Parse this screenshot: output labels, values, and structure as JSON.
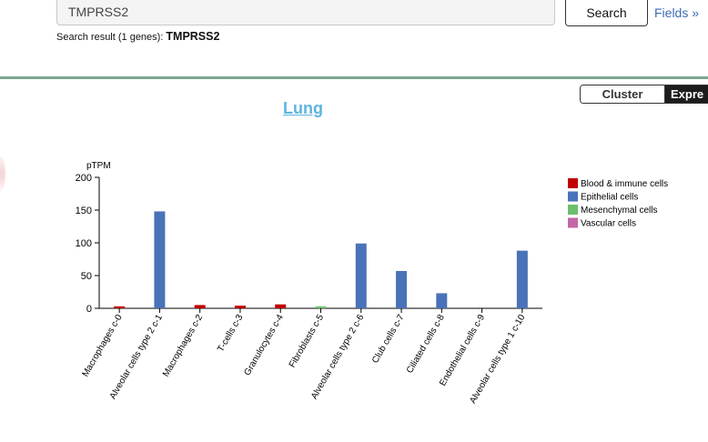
{
  "search": {
    "value": "TMPRSS2",
    "button_label": "Search",
    "fields_label": "Fields »"
  },
  "result": {
    "prefix": "Search result (1 genes):",
    "gene": "TMPRSS2"
  },
  "toggle": {
    "option1": "Cluster",
    "option2": "Expre"
  },
  "tissue": {
    "title": "Lung"
  },
  "colors": {
    "blood": "#c00000",
    "epithelial": "#4a72b8",
    "mesenchymal": "#6cbf6c",
    "vascular": "#c466a6",
    "divider": "#7ea592",
    "title": "#5fb4df"
  },
  "chart_data": {
    "type": "bar",
    "ylabel": "pTPM",
    "ylim": [
      0,
      200
    ],
    "yticks": [
      0,
      50,
      100,
      150,
      200
    ],
    "categories": [
      "Macrophages c-0",
      "Alveolar cells type 2 c-1",
      "Macrophages c-2",
      "T-cells c-3",
      "Granulocytes c-4",
      "Fibroblasts c-5",
      "Alveolar cells type 2 c-6",
      "Club cells c-7",
      "Ciliated cells c-8",
      "Endothelial cells c-9",
      "Alveolar cells type 1 c-10"
    ],
    "values": [
      3,
      148,
      5,
      4,
      6,
      3,
      99,
      57,
      23,
      0,
      88
    ],
    "groups": [
      "blood",
      "epithelial",
      "blood",
      "blood",
      "blood",
      "mesenchymal",
      "epithelial",
      "epithelial",
      "epithelial",
      "vascular",
      "epithelial"
    ],
    "legend": [
      {
        "key": "blood",
        "label": "Blood & immune cells"
      },
      {
        "key": "epithelial",
        "label": "Epithelial cells"
      },
      {
        "key": "mesenchymal",
        "label": "Mesenchymal cells"
      },
      {
        "key": "vascular",
        "label": "Vascular cells"
      }
    ]
  }
}
